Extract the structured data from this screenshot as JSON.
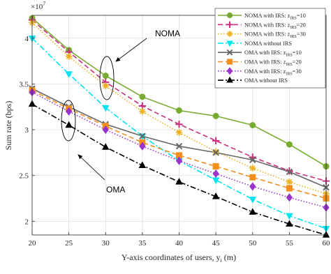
{
  "chart_data": {
    "type": "line",
    "xlabel": "Y-axis coordinates of users, y",
    "xlabel_sub": "i",
    "xlabel_unit": " (m)",
    "ylabel": "Sum rate (bps)",
    "y_exponent": "×10",
    "y_exponent_power": "7",
    "x": [
      20,
      25,
      30,
      35,
      40,
      45,
      50,
      55,
      60
    ],
    "xlim": [
      20,
      60
    ],
    "ylim": [
      1.85,
      4.25
    ],
    "x_ticks": [
      "20",
      "25",
      "30",
      "35",
      "40",
      "45",
      "50",
      "55",
      "60"
    ],
    "y_ticks": [
      "2",
      "2.5",
      "3",
      "3.5",
      "4"
    ],
    "y_tick_values": [
      2,
      2.5,
      3,
      3.5,
      4
    ],
    "grid": true,
    "legend_position": "top-right",
    "series": [
      {
        "name": "NOMA with IRS: z",
        "name_sub": "IRS",
        "name_suffix": "=10",
        "color": "#77ac30",
        "dash": "solid",
        "marker": "circle",
        "values": [
          4.22,
          3.87,
          3.59,
          3.36,
          3.21,
          3.15,
          3.05,
          2.84,
          2.6
        ]
      },
      {
        "name": "NOMA with IRS: z",
        "name_sub": "IRS",
        "name_suffix": "=20",
        "color": "#c8307f",
        "dash": "dashed",
        "marker": "plus",
        "values": [
          4.2,
          3.85,
          3.52,
          3.26,
          3.06,
          2.88,
          2.7,
          2.55,
          2.44
        ]
      },
      {
        "name": "NOMA with IRS: z",
        "name_sub": "IRS",
        "name_suffix": "=30",
        "color": "#edb120",
        "dash": "dotted",
        "marker": "asterisk",
        "values": [
          4.17,
          3.8,
          3.48,
          3.2,
          2.97,
          2.76,
          2.58,
          2.43,
          2.3
        ]
      },
      {
        "name": "NOMA without IRS",
        "color": "#00e5f0",
        "dash": "dashdot",
        "marker": "triangle-down",
        "values": [
          4.0,
          3.61,
          3.24,
          2.93,
          2.66,
          2.45,
          2.24,
          2.06,
          1.92
        ]
      },
      {
        "name": "OMA with IRS: z",
        "name_sub": "IRS",
        "name_suffix": "=10",
        "color": "#666666",
        "dash": "solid",
        "marker": "x",
        "values": [
          3.45,
          3.25,
          3.06,
          2.93,
          2.82,
          2.75,
          2.67,
          2.54,
          2.37
        ]
      },
      {
        "name": "OMA with IRS: z",
        "name_sub": "IRS",
        "name_suffix": "=20",
        "color": "#f28e1c",
        "dash": "dashed",
        "marker": "square",
        "values": [
          3.43,
          3.23,
          3.04,
          2.86,
          2.72,
          2.6,
          2.48,
          2.36,
          2.25
        ]
      },
      {
        "name": "OMA with IRS: z",
        "name_sub": "IRS",
        "name_suffix": "=30",
        "color": "#9933cc",
        "dash": "dotted",
        "marker": "diamond",
        "values": [
          3.41,
          3.2,
          3.0,
          2.82,
          2.66,
          2.52,
          2.38,
          2.26,
          2.15
        ]
      },
      {
        "name": "OMA without IRS",
        "color": "#000000",
        "dash": "dashdot",
        "marker": "triangle-up",
        "values": [
          3.28,
          3.05,
          2.81,
          2.61,
          2.43,
          2.27,
          2.1,
          1.97,
          1.85
        ]
      }
    ],
    "annotations": [
      {
        "text": "NOMA"
      },
      {
        "text": "OMA"
      }
    ]
  }
}
